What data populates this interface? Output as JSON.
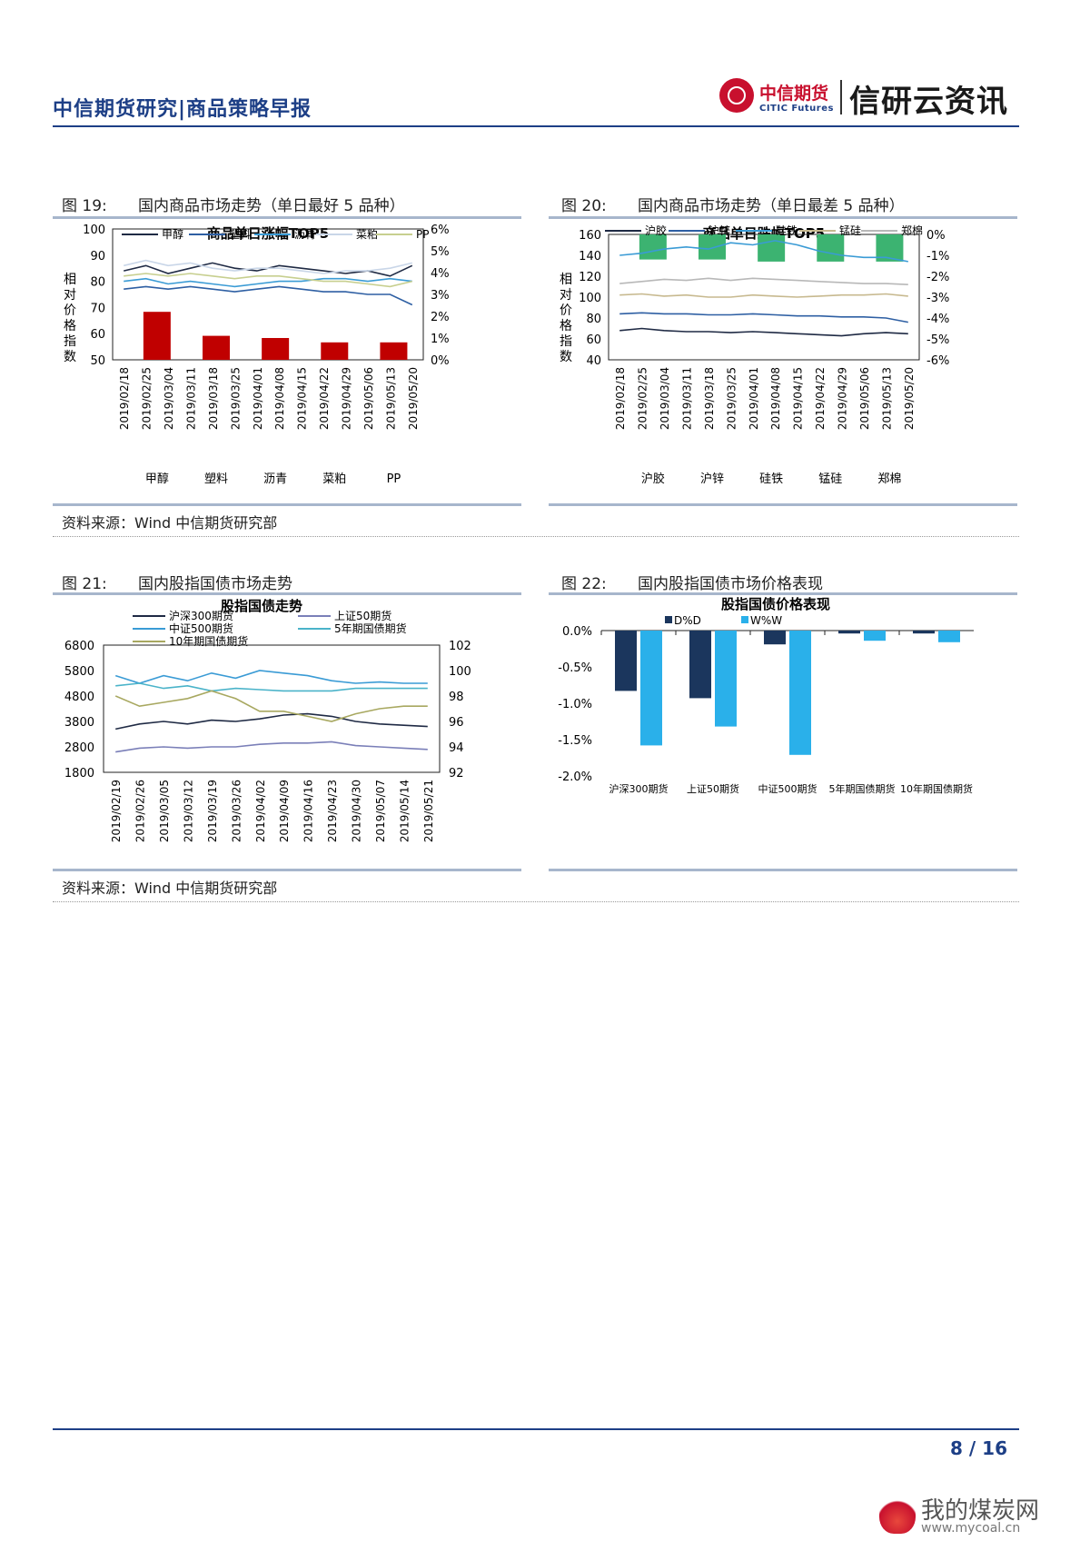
{
  "header": {
    "title": "中信期货研究|商品策略早报",
    "logo_cn": "中信期货",
    "logo_en": "CITIC Futures",
    "slogan": "信研云资讯"
  },
  "figures": {
    "fig19": {
      "num": "图 19:",
      "caption": "国内商品市场走势（单日最好 5 品种）"
    },
    "fig20": {
      "num": "图 20:",
      "caption": "国内商品市场走势（单日最差 5 品种）"
    },
    "fig21": {
      "num": "图 21:",
      "caption": "国内股指国债市场走势"
    },
    "fig22": {
      "num": "图 22:",
      "caption": "国内股指国债市场价格表现"
    }
  },
  "sources": {
    "s1": "资料来源：Wind 中信期货研究部",
    "s2": "资料来源：Wind 中信期货研究部"
  },
  "footer": {
    "page": "8 / 16",
    "watermark_cn": "我的煤炭网",
    "watermark_url": "www.mycoal.cn"
  },
  "chart_data": [
    {
      "id": "c19",
      "type": "line+bar",
      "title": "商品单日涨幅TOP5",
      "ylabel": "相对价格指数",
      "ylim": [
        50,
        100
      ],
      "yticks": [
        "100",
        "90",
        "80",
        "70",
        "60",
        "50"
      ],
      "y2lim": [
        0,
        6
      ],
      "y2ticks": [
        "6%",
        "5%",
        "4%",
        "3%",
        "2%",
        "1%",
        "0%"
      ],
      "x": [
        "2019/02/18",
        "2019/02/25",
        "2019/03/04",
        "2019/03/11",
        "2019/03/18",
        "2019/03/25",
        "2019/04/01",
        "2019/04/08",
        "2019/04/15",
        "2019/04/22",
        "2019/04/29",
        "2019/05/06",
        "2019/05/13",
        "2019/05/20"
      ],
      "series": [
        {
          "name": "甲醇",
          "color": "#1f2a44",
          "values": [
            84,
            86,
            83,
            85,
            87,
            85,
            84,
            86,
            85,
            84,
            83,
            84,
            82,
            86
          ]
        },
        {
          "name": "塑料",
          "color": "#2e5fa3",
          "values": [
            77,
            78,
            77,
            78,
            77,
            76,
            77,
            78,
            77,
            76,
            76,
            75,
            75,
            71
          ]
        },
        {
          "name": "沥青",
          "color": "#3a9bd5",
          "values": [
            80,
            81,
            79,
            80,
            79,
            78,
            79,
            80,
            80,
            81,
            81,
            80,
            81,
            80
          ]
        },
        {
          "name": "菜粕",
          "color": "#c9d6e8",
          "values": [
            86,
            88,
            86,
            87,
            85,
            84,
            85,
            85,
            84,
            83,
            84,
            84,
            85,
            87
          ]
        },
        {
          "name": "PP",
          "color": "#c7cf8f",
          "values": [
            82,
            83,
            82,
            83,
            82,
            81,
            82,
            82,
            81,
            80,
            80,
            79,
            78,
            80
          ]
        }
      ],
      "bars": {
        "color": "#c00000",
        "categories": [
          "甲醇",
          "塑料",
          "沥青",
          "菜粕",
          "PP"
        ],
        "values": [
          2.2,
          1.1,
          1.0,
          0.8,
          0.8
        ]
      }
    },
    {
      "id": "c20",
      "type": "line+bar",
      "title": "商品单日跌幅TOP5",
      "ylabel": "相对价格指数",
      "ylim": [
        40,
        160
      ],
      "yticks": [
        "160",
        "140",
        "120",
        "100",
        "80",
        "60",
        "40"
      ],
      "y2lim": [
        -6,
        0
      ],
      "y2ticks": [
        "0%",
        "-1%",
        "-2%",
        "-3%",
        "-4%",
        "-5%",
        "-6%"
      ],
      "x": [
        "2019/02/18",
        "2019/02/25",
        "2019/03/04",
        "2019/03/11",
        "2019/03/18",
        "2019/03/25",
        "2019/04/01",
        "2019/04/08",
        "2019/04/15",
        "2019/04/22",
        "2019/04/29",
        "2019/05/06",
        "2019/05/13",
        "2019/05/20"
      ],
      "series": [
        {
          "name": "沪胶",
          "color": "#1f2a44",
          "values": [
            68,
            70,
            68,
            67,
            67,
            66,
            67,
            66,
            65,
            64,
            63,
            65,
            66,
            65
          ]
        },
        {
          "name": "沪锌",
          "color": "#2e5fa3",
          "values": [
            84,
            85,
            84,
            84,
            83,
            83,
            84,
            83,
            82,
            82,
            81,
            81,
            80,
            76
          ]
        },
        {
          "name": "硅铁",
          "color": "#3a9bd5",
          "values": [
            140,
            142,
            146,
            148,
            146,
            152,
            150,
            154,
            150,
            144,
            140,
            138,
            138,
            134
          ]
        },
        {
          "name": "锰硅",
          "color": "#c7b98f",
          "values": [
            102,
            103,
            101,
            102,
            100,
            100,
            102,
            101,
            100,
            101,
            102,
            102,
            103,
            101
          ]
        },
        {
          "name": "郑棉",
          "color": "#b8b8b8",
          "values": [
            113,
            115,
            117,
            116,
            118,
            116,
            118,
            117,
            116,
            115,
            114,
            113,
            113,
            112
          ]
        }
      ],
      "bars": {
        "color": "#3cb371",
        "categories": [
          "沪胶",
          "沪锌",
          "硅铁",
          "锰硅",
          "郑棉"
        ],
        "values": [
          -1.2,
          -1.2,
          -1.3,
          -1.3,
          -1.3
        ]
      }
    },
    {
      "id": "c21",
      "type": "line",
      "title": "股指国债走势",
      "ylim": [
        1800,
        6800
      ],
      "yticks": [
        "6800",
        "5800",
        "4800",
        "3800",
        "2800",
        "1800"
      ],
      "y2lim": [
        92,
        102
      ],
      "y2ticks": [
        "102",
        "100",
        "98",
        "96",
        "94",
        "92"
      ],
      "x": [
        "2019/02/19",
        "2019/02/26",
        "2019/03/05",
        "2019/03/12",
        "2019/03/19",
        "2019/03/26",
        "2019/04/02",
        "2019/04/09",
        "2019/04/16",
        "2019/04/23",
        "2019/04/30",
        "2019/05/07",
        "2019/05/14",
        "2019/05/21"
      ],
      "series": [
        {
          "name": "沪深300期货",
          "axis": "left",
          "color": "#1f2a44",
          "values": [
            3500,
            3700,
            3800,
            3700,
            3850,
            3800,
            3900,
            4050,
            4100,
            4000,
            3800,
            3700,
            3650,
            3600
          ]
        },
        {
          "name": "上证50期货",
          "axis": "left",
          "color": "#7a7fb8",
          "values": [
            2600,
            2750,
            2800,
            2750,
            2800,
            2800,
            2900,
            2950,
            2950,
            3000,
            2850,
            2800,
            2750,
            2700
          ]
        },
        {
          "name": "中证500期货",
          "axis": "left",
          "color": "#3a9bd5",
          "values": [
            5600,
            5300,
            5600,
            5400,
            5700,
            5500,
            5800,
            5700,
            5600,
            5400,
            5300,
            5350,
            5300,
            5300
          ]
        },
        {
          "name": "5年期国债期货",
          "axis": "right",
          "color": "#4ab3c9",
          "values": [
            98.8,
            99.0,
            98.6,
            98.8,
            98.4,
            98.6,
            98.5,
            98.4,
            98.4,
            98.4,
            98.6,
            98.6,
            98.6,
            98.6
          ]
        },
        {
          "name": "10年期国债期货",
          "axis": "right",
          "color": "#a8a860",
          "values": [
            98.0,
            97.2,
            97.5,
            97.8,
            98.4,
            97.8,
            96.8,
            96.8,
            96.4,
            96.0,
            96.6,
            97.0,
            97.2,
            97.2
          ]
        }
      ]
    },
    {
      "id": "c22",
      "type": "bar",
      "title": "股指国债价格表现",
      "ylim": [
        -2.0,
        0.0
      ],
      "yticks": [
        "0.0%",
        "-0.5%",
        "-1.0%",
        "-1.5%",
        "-2.0%"
      ],
      "categories": [
        "沪深300期货",
        "上证50期货",
        "中证500期货",
        "5年期国债期货",
        "10年期国债期货"
      ],
      "series": [
        {
          "name": "D%D",
          "color": "#1b365d",
          "values": [
            -0.83,
            -0.93,
            -0.19,
            -0.04,
            -0.04
          ]
        },
        {
          "name": "W%W",
          "color": "#2ab0ea",
          "values": [
            -1.58,
            -1.32,
            -1.71,
            -0.14,
            -0.16
          ]
        }
      ]
    }
  ]
}
